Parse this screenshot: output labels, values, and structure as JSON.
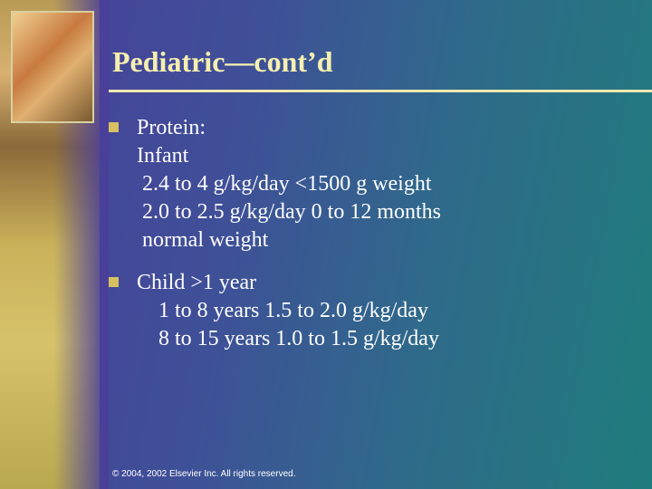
{
  "title": "Pediatric—cont’d",
  "bullets": [
    {
      "lines": [
        "Protein:",
        "Infant",
        " 2.4 to 4 g/kg/day <1500 g weight",
        " 2.0 to 2.5 g/kg/day 0 to 12 months",
        " normal weight"
      ]
    },
    {
      "lines": [
        "Child >1 year",
        "    1 to 8 years 1.5 to 2.0 g/kg/day",
        "    8 to 15 years 1.0 to 1.5 g/kg/day"
      ]
    }
  ],
  "footer": "© 2004, 2002 Elsevier Inc. All rights reserved."
}
